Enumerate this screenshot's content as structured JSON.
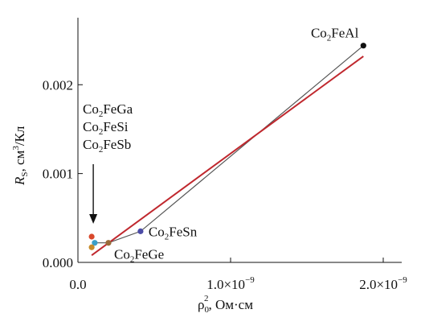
{
  "chart_data": {
    "type": "scatter",
    "xlabel": {
      "main": "ρ",
      "sub": "0",
      "sup": "2",
      "rest": ", Ом·см"
    },
    "ylabel": {
      "main": "R",
      "sub": "S",
      "rest": ", см",
      "sup": "3",
      "tail": "/Кл"
    },
    "xlim": [
      0,
      2e-09
    ],
    "ylim": [
      0,
      0.0027
    ],
    "x_ticks": [
      {
        "value": 0,
        "label": "0.0"
      },
      {
        "value": 1e-09,
        "label": "1.0×10",
        "exp": "−9"
      },
      {
        "value": 2e-09,
        "label": "2.0×10",
        "exp": "−9"
      }
    ],
    "y_ticks": [
      {
        "value": 0,
        "label": "0.000"
      },
      {
        "value": 0.001,
        "label": "0.001"
      },
      {
        "value": 0.002,
        "label": "0.002"
      }
    ],
    "points": [
      {
        "name": "Co2FeGa",
        "x": 9e-11,
        "y": 0.00029,
        "color": "#d9482b"
      },
      {
        "name": "Co2FeSi",
        "x": 1.1e-10,
        "y": 0.00022,
        "color": "#3a9fc9"
      },
      {
        "name": "Co2FeSb",
        "x": 9e-11,
        "y": 0.00017,
        "color": "#c78a2a"
      },
      {
        "name": "Co2FeGe",
        "x": 2e-10,
        "y": 0.00022,
        "color": "#9a6b3a"
      },
      {
        "name": "Co2FeSn",
        "x": 4.1e-10,
        "y": 0.00035,
        "color": "#4b4ba6"
      },
      {
        "name": "Co2FeAl",
        "x": 1.87e-09,
        "y": 0.00244,
        "color": "#111111"
      }
    ],
    "connecting_line": {
      "color": "#555555",
      "path": [
        "Co2FeSi",
        "Co2FeGe",
        "Co2FeSn",
        "Co2FeAl"
      ]
    },
    "fit_line": {
      "color": "#c0282e",
      "x": [
        9e-11,
        1.87e-09
      ],
      "y": [
        8e-05,
        0.00232
      ]
    },
    "annotations": [
      {
        "id": "al",
        "parts": [
          "Co",
          "2",
          "FeAl"
        ]
      },
      {
        "id": "ga",
        "parts": [
          "Co",
          "2",
          "FeGa"
        ]
      },
      {
        "id": "si",
        "parts": [
          "Co",
          "2",
          "FeSi"
        ]
      },
      {
        "id": "sb",
        "parts": [
          "Co",
          "2",
          "FeSb"
        ]
      },
      {
        "id": "sn",
        "parts": [
          "Co",
          "2",
          "FeSn"
        ]
      },
      {
        "id": "ge",
        "parts": [
          "Co",
          "2",
          "FeGe"
        ]
      }
    ],
    "arrow": {
      "target": "Co2FeGa"
    },
    "grid": false,
    "legend": "none"
  }
}
